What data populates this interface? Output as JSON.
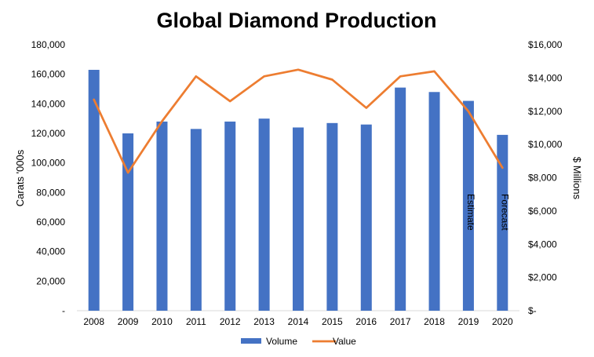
{
  "chart_data": {
    "type": "bar",
    "title": "Global Diamond Production",
    "categories": [
      "2008",
      "2009",
      "2010",
      "2011",
      "2012",
      "2013",
      "2014",
      "2015",
      "2016",
      "2017",
      "2018",
      "2019",
      "2020"
    ],
    "series": [
      {
        "name": "Volume",
        "type": "bar",
        "axis": "left",
        "color": "#4472C4",
        "values": [
          163000,
          120000,
          128000,
          123000,
          128000,
          130000,
          124000,
          127000,
          126000,
          151000,
          148000,
          142000,
          119000
        ]
      },
      {
        "name": "Value",
        "type": "line",
        "axis": "right",
        "color": "#ED7D31",
        "values": [
          12700,
          8300,
          11400,
          14100,
          12600,
          14100,
          14500,
          13900,
          12200,
          14100,
          14400,
          12000,
          8600
        ]
      }
    ],
    "ylabel": "Carats '000s",
    "ylabel_right": "$ Millions",
    "ylim": [
      0,
      180000
    ],
    "ylim_right": [
      0,
      16000
    ],
    "yticks": [
      "-",
      "20,000",
      "40,000",
      "60,000",
      "80,000",
      "100,000",
      "120,000",
      "140,000",
      "160,000",
      "180,000"
    ],
    "yticks_right": [
      "$-",
      "$2,000",
      "$4,000",
      "$6,000",
      "$8,000",
      "$10,000",
      "$12,000",
      "$14,000",
      "$16,000"
    ],
    "grid": false,
    "legend_position": "bottom",
    "annotations": [
      {
        "text": "Estimate",
        "category": "2019"
      },
      {
        "text": "Forecast",
        "category": "2020"
      }
    ]
  }
}
